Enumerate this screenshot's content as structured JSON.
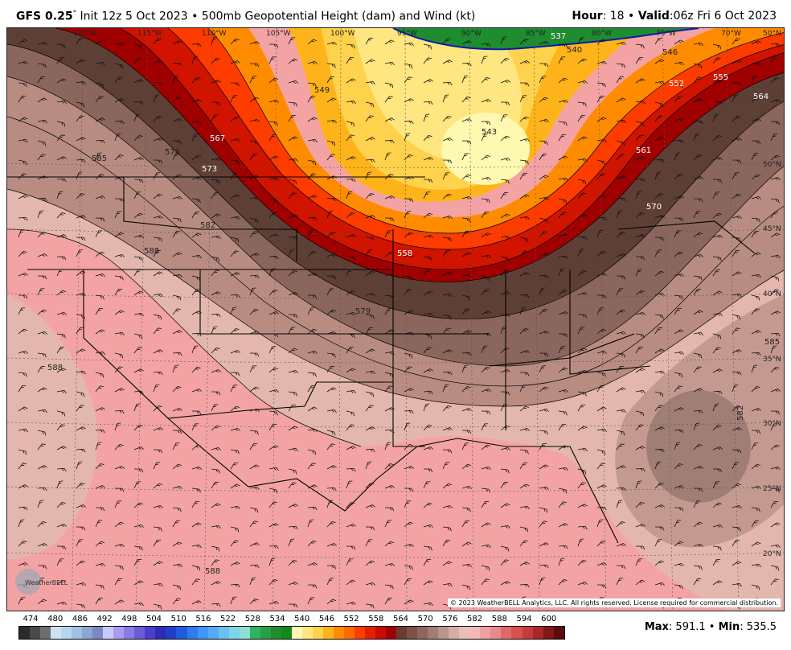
{
  "header": {
    "model": "GFS 0.25",
    "degree": "°",
    "init": "Init 12z 5 Oct 2023",
    "bullet": "•",
    "product": "500mb Geopotential Height (dam) and Wind (kt)",
    "hour_label": "Hour",
    "hour_value": ": 18",
    "valid_label": "Valid",
    "valid_value": ":06z Fri 6 Oct 2023"
  },
  "map": {
    "longitudes": [
      "120°W",
      "115°W",
      "110°W",
      "105°W",
      "100°W",
      "95°W",
      "90°W",
      "85°W",
      "80°W",
      "75°W",
      "70°W"
    ],
    "latitudes": [
      "50°N",
      "45°N",
      "40°N",
      "35°N",
      "30°N",
      "25°N",
      "20°N"
    ],
    "top_lat_label": "50°N",
    "contour_labels": [
      "537",
      "540",
      "543",
      "546",
      "549",
      "552",
      "555",
      "558",
      "561",
      "564",
      "567",
      "570",
      "573",
      "576",
      "579",
      "582",
      "585",
      "588"
    ],
    "copyright": "© 2023 WeatherBELL Analytics, LLC. All rights reserved. License required for commercial distribution.",
    "logo_text": "WeatherBELL"
  },
  "colorbar": {
    "labels": [
      "474",
      "480",
      "486",
      "492",
      "498",
      "504",
      "510",
      "516",
      "522",
      "528",
      "534",
      "540",
      "546",
      "552",
      "558",
      "564",
      "570",
      "576",
      "582",
      "588",
      "594",
      "600"
    ],
    "colors": [
      "#2b2b2b",
      "#4a4a4a",
      "#6e6e6e",
      "#cfe2f3",
      "#b8d4ee",
      "#9fbfe3",
      "#8aa6d2",
      "#7a88c4",
      "#c9c9ff",
      "#a99cf0",
      "#8a7ae6",
      "#6b5bd9",
      "#4c3dcc",
      "#2b2cb8",
      "#1f40c8",
      "#1f5ae0",
      "#2f7af0",
      "#3f96f7",
      "#55aaf7",
      "#6cc0f0",
      "#7fd5e8",
      "#8fe0d0",
      "#2fb35f",
      "#28a046",
      "#1f8c30",
      "#108a1a",
      "#fff8b0",
      "#ffe680",
      "#ffd24d",
      "#ffb31a",
      "#ff8c00",
      "#ff6a00",
      "#ff3c00",
      "#e61e00",
      "#c80a00",
      "#a00000",
      "#6e3a2e",
      "#7e5046",
      "#8e665e",
      "#a07e76",
      "#b8968e",
      "#d4aea6",
      "#e8c0b8",
      "#f6b7b7",
      "#f0a0a0",
      "#e88a8a",
      "#e06a6a",
      "#d85050",
      "#c83a3a",
      "#a82828",
      "#801818",
      "#5c0c0c"
    ],
    "max_label": "Max",
    "max_value": ": 591.1",
    "min_label": "Min",
    "min_value": ": 535.5",
    "sep": "•"
  }
}
